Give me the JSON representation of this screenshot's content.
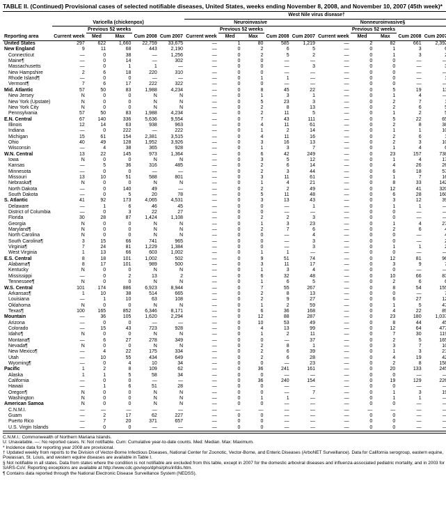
{
  "title": "TABLE II. (Continued) Provisional cases of selected notifiable diseases, United States, weeks ending November 8, 2008, and November 10, 2007 (45th week)*",
  "super_header": "West Nile virus disease†",
  "diseases": [
    "Varicella (chickenpox)",
    "Neuroinvasive",
    "Nonneuroinvasive§"
  ],
  "sub_headers": {
    "current_week": "Current week",
    "previous": "Previous 52 weeks",
    "med": "Med",
    "max": "Max",
    "cum_2008": "Cum 2008",
    "cum_2007": "Cum 2007",
    "reporting_area": "Reporting area"
  },
  "rows": [
    {
      "g": 1,
      "area": "United States",
      "v": [
        "297",
        "622",
        "1,660",
        "22,759",
        "33,675",
        "—",
        "1",
        "80",
        "585",
        "1,219",
        "—",
        "2",
        "82",
        "661",
        "2,392"
      ]
    },
    {
      "g": 1,
      "area": "New England",
      "v": [
        "9",
        "11",
        "68",
        "443",
        "2,190",
        "—",
        "0",
        "2",
        "6",
        "5",
        "—",
        "0",
        "1",
        "3",
        "6"
      ]
    },
    {
      "area": "Connecticut",
      "v": [
        "—",
        "0",
        "38",
        "—",
        "1,256",
        "—",
        "0",
        "2",
        "5",
        "2",
        "—",
        "0",
        "1",
        "3",
        "2"
      ]
    },
    {
      "area": "Maine¶",
      "v": [
        "—",
        "0",
        "14",
        "—",
        "302",
        "—",
        "0",
        "0",
        "—",
        "—",
        "—",
        "0",
        "0",
        "—",
        "—"
      ]
    },
    {
      "area": "Massachusetts",
      "v": [
        "—",
        "0",
        "1",
        "1",
        "—",
        "—",
        "0",
        "0",
        "—",
        "3",
        "—",
        "0",
        "0",
        "—",
        "3"
      ]
    },
    {
      "area": "New Hampshire",
      "v": [
        "2",
        "6",
        "18",
        "220",
        "310",
        "—",
        "0",
        "0",
        "—",
        "—",
        "—",
        "0",
        "0",
        "—",
        "—"
      ]
    },
    {
      "area": "Rhode Island¶",
      "v": [
        "—",
        "0",
        "0",
        "—",
        "—",
        "—",
        "0",
        "1",
        "1",
        "—",
        "—",
        "0",
        "0",
        "—",
        "1"
      ]
    },
    {
      "area": "Vermont¶",
      "v": [
        "7",
        "6",
        "17",
        "222",
        "322",
        "—",
        "0",
        "0",
        "—",
        "—",
        "—",
        "0",
        "0",
        "—",
        "—"
      ]
    },
    {
      "g": 1,
      "area": "Mid. Atlantic",
      "v": [
        "57",
        "50",
        "83",
        "1,988",
        "4,234",
        "—",
        "0",
        "8",
        "45",
        "22",
        "—",
        "0",
        "5",
        "19",
        "11"
      ]
    },
    {
      "area": "New Jersey",
      "v": [
        "N",
        "0",
        "0",
        "N",
        "N",
        "—",
        "0",
        "1",
        "3",
        "1",
        "—",
        "0",
        "1",
        "4",
        "—"
      ]
    },
    {
      "area": "New York (Upstate)",
      "v": [
        "N",
        "0",
        "0",
        "N",
        "N",
        "—",
        "0",
        "5",
        "23",
        "3",
        "—",
        "0",
        "2",
        "7",
        "1"
      ]
    },
    {
      "area": "New York City",
      "v": [
        "N",
        "0",
        "0",
        "N",
        "N",
        "—",
        "0",
        "2",
        "8",
        "13",
        "—",
        "0",
        "2",
        "6",
        "5"
      ]
    },
    {
      "area": "Pennsylvania",
      "v": [
        "57",
        "50",
        "83",
        "1,988",
        "4,234",
        "—",
        "0",
        "2",
        "11",
        "5",
        "—",
        "0",
        "1",
        "2",
        "5"
      ]
    },
    {
      "g": 1,
      "area": "E.N. Central",
      "v": [
        "67",
        "140",
        "336",
        "5,636",
        "9,554",
        "—",
        "0",
        "7",
        "43",
        "111",
        "—",
        "0",
        "5",
        "22",
        "65"
      ]
    },
    {
      "area": "Illinois",
      "v": [
        "12",
        "14",
        "63",
        "938",
        "963",
        "—",
        "0",
        "4",
        "11",
        "61",
        "—",
        "0",
        "2",
        "8",
        "38"
      ]
    },
    {
      "area": "Indiana",
      "v": [
        "—",
        "0",
        "222",
        "—",
        "222",
        "—",
        "0",
        "1",
        "2",
        "14",
        "—",
        "0",
        "1",
        "1",
        "10"
      ]
    },
    {
      "area": "Michigan",
      "v": [
        "15",
        "61",
        "154",
        "2,381",
        "3,515",
        "—",
        "0",
        "4",
        "11",
        "16",
        "—",
        "0",
        "2",
        "6",
        "1"
      ]
    },
    {
      "area": "Ohio",
      "v": [
        "40",
        "49",
        "128",
        "1,952",
        "3,926",
        "—",
        "0",
        "3",
        "16",
        "13",
        "—",
        "0",
        "2",
        "3",
        "10"
      ]
    },
    {
      "area": "Wisconsin",
      "v": [
        "—",
        "4",
        "38",
        "365",
        "928",
        "—",
        "0",
        "1",
        "3",
        "7",
        "—",
        "0",
        "1",
        "4",
        "6"
      ]
    },
    {
      "g": 1,
      "area": "W.N. Central",
      "v": [
        "13",
        "22",
        "145",
        "973",
        "1,364",
        "—",
        "0",
        "6",
        "42",
        "249",
        "—",
        "0",
        "23",
        "157",
        "738"
      ]
    },
    {
      "area": "Iowa",
      "v": [
        "N",
        "0",
        "0",
        "N",
        "N",
        "—",
        "0",
        "3",
        "5",
        "12",
        "—",
        "0",
        "1",
        "4",
        "17"
      ]
    },
    {
      "area": "Kansas",
      "v": [
        "—",
        "5",
        "36",
        "316",
        "485",
        "—",
        "0",
        "2",
        "6",
        "14",
        "—",
        "0",
        "4",
        "26",
        "26"
      ]
    },
    {
      "area": "Minnesota",
      "v": [
        "—",
        "0",
        "0",
        "—",
        "—",
        "—",
        "0",
        "2",
        "3",
        "44",
        "—",
        "0",
        "6",
        "18",
        "57"
      ]
    },
    {
      "area": "Missouri",
      "v": [
        "13",
        "10",
        "51",
        "588",
        "801",
        "—",
        "0",
        "3",
        "11",
        "61",
        "—",
        "0",
        "1",
        "7",
        "16"
      ]
    },
    {
      "area": "Nebraska¶",
      "v": [
        "N",
        "0",
        "0",
        "N",
        "N",
        "—",
        "0",
        "1",
        "4",
        "21",
        "—",
        "0",
        "8",
        "33",
        "142"
      ]
    },
    {
      "area": "North Dakota",
      "v": [
        "—",
        "0",
        "140",
        "49",
        "—",
        "—",
        "0",
        "2",
        "2",
        "49",
        "—",
        "0",
        "12",
        "41",
        "320"
      ]
    },
    {
      "area": "South Dakota",
      "v": [
        "—",
        "0",
        "5",
        "20",
        "78",
        "—",
        "0",
        "5",
        "11",
        "48",
        "—",
        "0",
        "6",
        "28",
        "160"
      ]
    },
    {
      "g": 1,
      "area": "S. Atlantic",
      "v": [
        "41",
        "92",
        "173",
        "4,065",
        "4,531",
        "—",
        "0",
        "3",
        "13",
        "43",
        "—",
        "0",
        "3",
        "12",
        "39"
      ]
    },
    {
      "area": "Delaware",
      "v": [
        "—",
        "1",
        "6",
        "46",
        "45",
        "—",
        "0",
        "0",
        "—",
        "1",
        "—",
        "0",
        "1",
        "1",
        "—"
      ]
    },
    {
      "area": "District of Columbia",
      "v": [
        "—",
        "0",
        "3",
        "22",
        "27",
        "—",
        "0",
        "0",
        "—",
        "—",
        "—",
        "0",
        "0",
        "—",
        "—"
      ]
    },
    {
      "area": "Florida",
      "v": [
        "30",
        "28",
        "87",
        "1,424",
        "1,108",
        "—",
        "0",
        "2",
        "2",
        "3",
        "—",
        "0",
        "0",
        "—",
        "—"
      ]
    },
    {
      "area": "Georgia",
      "v": [
        "N",
        "0",
        "0",
        "N",
        "N",
        "—",
        "0",
        "1",
        "3",
        "23",
        "—",
        "0",
        "1",
        "4",
        "27"
      ]
    },
    {
      "area": "Maryland¶",
      "v": [
        "N",
        "0",
        "0",
        "N",
        "N",
        "—",
        "0",
        "2",
        "7",
        "6",
        "—",
        "0",
        "2",
        "6",
        "4"
      ]
    },
    {
      "area": "North Carolina",
      "v": [
        "N",
        "0",
        "0",
        "N",
        "N",
        "—",
        "0",
        "0",
        "—",
        "4",
        "—",
        "0",
        "0",
        "—",
        "4"
      ]
    },
    {
      "area": "South Carolina¶",
      "v": [
        "3",
        "15",
        "66",
        "741",
        "965",
        "—",
        "0",
        "0",
        "—",
        "3",
        "—",
        "0",
        "0",
        "—",
        "2"
      ]
    },
    {
      "area": "Virginia¶",
      "v": [
        "7",
        "24",
        "81",
        "1,229",
        "1,384",
        "—",
        "0",
        "0",
        "—",
        "3",
        "—",
        "0",
        "1",
        "1",
        "2"
      ]
    },
    {
      "area": "West Virginia",
      "v": [
        "1",
        "13",
        "66",
        "603",
        "1,002",
        "—",
        "0",
        "1",
        "1",
        "—",
        "—",
        "0",
        "0",
        "—",
        "—"
      ]
    },
    {
      "g": 1,
      "area": "E.S. Central",
      "v": [
        "8",
        "18",
        "101",
        "1,002",
        "502",
        "—",
        "0",
        "9",
        "51",
        "74",
        "—",
        "0",
        "12",
        "81",
        "96"
      ]
    },
    {
      "area": "Alabama¶",
      "v": [
        "8",
        "17",
        "101",
        "989",
        "500",
        "—",
        "0",
        "3",
        "11",
        "17",
        "—",
        "0",
        "3",
        "9",
        "7"
      ]
    },
    {
      "area": "Kentucky",
      "v": [
        "N",
        "0",
        "0",
        "N",
        "N",
        "—",
        "0",
        "1",
        "3",
        "4",
        "—",
        "0",
        "0",
        "—",
        "—"
      ]
    },
    {
      "area": "Mississippi",
      "v": [
        "—",
        "0",
        "2",
        "13",
        "2",
        "—",
        "0",
        "6",
        "32",
        "48",
        "—",
        "0",
        "10",
        "66",
        "83"
      ]
    },
    {
      "area": "Tennessee¶",
      "v": [
        "N",
        "0",
        "0",
        "N",
        "N",
        "—",
        "0",
        "1",
        "6",
        "5",
        "—",
        "0",
        "2",
        "6",
        "6"
      ]
    },
    {
      "g": 1,
      "area": "W.S. Central",
      "v": [
        "101",
        "174",
        "886",
        "6,923",
        "8,944",
        "—",
        "0",
        "7",
        "55",
        "267",
        "—",
        "0",
        "8",
        "54",
        "155"
      ]
    },
    {
      "area": "Arkansas¶",
      "v": [
        "1",
        "10",
        "38",
        "514",
        "665",
        "—",
        "0",
        "2",
        "8",
        "13",
        "—",
        "0",
        "0",
        "—",
        "7"
      ]
    },
    {
      "area": "Louisiana",
      "v": [
        "—",
        "1",
        "10",
        "63",
        "108",
        "—",
        "0",
        "2",
        "9",
        "27",
        "—",
        "0",
        "6",
        "27",
        "12"
      ]
    },
    {
      "area": "Oklahoma",
      "v": [
        "N",
        "0",
        "0",
        "N",
        "N",
        "—",
        "0",
        "1",
        "2",
        "59",
        "—",
        "0",
        "1",
        "5",
        "47"
      ]
    },
    {
      "area": "Texas¶",
      "v": [
        "100",
        "165",
        "852",
        "6,346",
        "8,171",
        "—",
        "0",
        "6",
        "36",
        "168",
        "—",
        "0",
        "4",
        "22",
        "89"
      ]
    },
    {
      "g": 1,
      "area": "Mountain",
      "v": [
        "—",
        "36",
        "105",
        "1,620",
        "2,294",
        "—",
        "0",
        "12",
        "88",
        "287",
        "—",
        "0",
        "23",
        "180",
        "1,037"
      ]
    },
    {
      "area": "Arizona",
      "v": [
        "—",
        "0",
        "0",
        "—",
        "—",
        "—",
        "0",
        "10",
        "53",
        "49",
        "—",
        "0",
        "8",
        "44",
        "45"
      ]
    },
    {
      "area": "Colorado",
      "v": [
        "—",
        "15",
        "43",
        "723",
        "928",
        "—",
        "0",
        "4",
        "13",
        "99",
        "—",
        "0",
        "12",
        "64",
        "477"
      ]
    },
    {
      "area": "Idaho¶",
      "v": [
        "N",
        "0",
        "0",
        "N",
        "N",
        "—",
        "0",
        "1",
        "2",
        "11",
        "—",
        "0",
        "7",
        "30",
        "119"
      ]
    },
    {
      "area": "Montana¶",
      "v": [
        "—",
        "6",
        "27",
        "278",
        "349",
        "—",
        "0",
        "0",
        "—",
        "37",
        "—",
        "0",
        "2",
        "5",
        "165"
      ]
    },
    {
      "area": "Nevada¶",
      "v": [
        "N",
        "0",
        "0",
        "N",
        "N",
        "—",
        "0",
        "2",
        "8",
        "1",
        "—",
        "0",
        "3",
        "7",
        "10"
      ]
    },
    {
      "area": "New Mexico¶",
      "v": [
        "—",
        "4",
        "22",
        "175",
        "334",
        "—",
        "0",
        "2",
        "6",
        "39",
        "—",
        "0",
        "1",
        "3",
        "21"
      ]
    },
    {
      "area": "Utah",
      "v": [
        "—",
        "10",
        "55",
        "434",
        "649",
        "—",
        "0",
        "2",
        "6",
        "28",
        "—",
        "0",
        "4",
        "19",
        "42"
      ]
    },
    {
      "area": "Wyoming¶",
      "v": [
        "—",
        "0",
        "4",
        "10",
        "34",
        "—",
        "0",
        "0",
        "—",
        "23",
        "—",
        "0",
        "2",
        "8",
        "158"
      ]
    },
    {
      "g": 1,
      "area": "Pacific",
      "v": [
        "1",
        "2",
        "8",
        "109",
        "62",
        "—",
        "0",
        "36",
        "241",
        "161",
        "—",
        "0",
        "20",
        "133",
        "245"
      ]
    },
    {
      "area": "Alaska",
      "v": [
        "1",
        "1",
        "5",
        "58",
        "34",
        "—",
        "0",
        "0",
        "—",
        "—",
        "—",
        "0",
        "0",
        "—",
        "—"
      ]
    },
    {
      "area": "California",
      "v": [
        "—",
        "0",
        "0",
        "—",
        "—",
        "—",
        "0",
        "36",
        "240",
        "154",
        "—",
        "0",
        "19",
        "129",
        "226"
      ]
    },
    {
      "area": "Hawaii",
      "v": [
        "—",
        "1",
        "6",
        "51",
        "28",
        "—",
        "0",
        "0",
        "—",
        "—",
        "—",
        "0",
        "0",
        "—",
        "—"
      ]
    },
    {
      "area": "Oregon¶",
      "v": [
        "N",
        "0",
        "0",
        "N",
        "N",
        "—",
        "0",
        "0",
        "—",
        "7",
        "—",
        "0",
        "1",
        "3",
        "19"
      ]
    },
    {
      "area": "Washington",
      "v": [
        "N",
        "0",
        "0",
        "N",
        "N",
        "—",
        "0",
        "1",
        "1",
        "—",
        "—",
        "0",
        "1",
        "1",
        "—"
      ]
    },
    {
      "g": 1,
      "area": "American Samoa",
      "v": [
        "N",
        "0",
        "0",
        "N",
        "N",
        "—",
        "0",
        "0",
        "—",
        "—",
        "—",
        "0",
        "0",
        "—",
        "—"
      ]
    },
    {
      "area": "C.N.M.I.",
      "v": [
        "—",
        "—",
        "—",
        "—",
        "—",
        "—",
        "—",
        "—",
        "—",
        "—",
        "—",
        "—",
        "—",
        "—",
        "—"
      ]
    },
    {
      "area": "Guam",
      "v": [
        "—",
        "2",
        "17",
        "62",
        "227",
        "—",
        "0",
        "0",
        "—",
        "—",
        "—",
        "0",
        "0",
        "—",
        "—"
      ]
    },
    {
      "area": "Puerto Rico",
      "v": [
        "—",
        "7",
        "20",
        "371",
        "657",
        "—",
        "0",
        "0",
        "—",
        "—",
        "—",
        "0",
        "0",
        "—",
        "—"
      ]
    },
    {
      "area": "U.S. Virgin Islands",
      "v": [
        "—",
        "0",
        "0",
        "—",
        "—",
        "—",
        "0",
        "0",
        "—",
        "—",
        "—",
        "0",
        "0",
        "—",
        "—"
      ]
    }
  ],
  "footnotes": [
    "C.N.M.I.: Commonwealth of Northern Mariana Islands.",
    "U: Unavailable.    —: No reported cases.    N: Not notifiable.    Cum: Cumulative year-to-date counts.    Med: Median.    Max: Maximum.",
    "* Incidence data for reporting year 2008 are provisional.",
    "† Updated weekly from reports to the Division of Vector-Borne Infectious Diseases, National Center for Zoonotic, Vector-Borne, and Enteric Diseases (ArboNET Surveillance). Data for California serogroup, eastern equine, Powassan, St. Louis, and western equine diseases are available in Table I.",
    "§ Not notifiable in all states. Data from states where the condition is not notifiable are excluded from this table, except in 2007 for the domestic arboviral diseases and influenza-associated pediatric mortality, and in 2003 for SARS-CoV. Reporting exceptions are available at http://www.cdc.gov/epo/dphsi/phs/infdis.htm.",
    "¶ Contains data reported through the National Electronic Disease Surveillance System (NEDSS)."
  ]
}
